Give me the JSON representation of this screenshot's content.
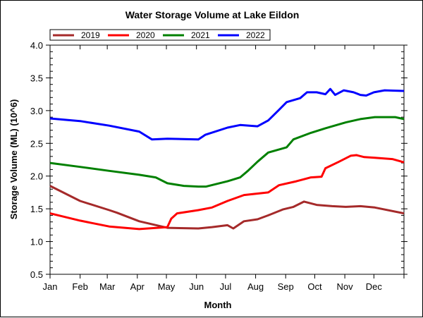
{
  "chart_data": {
    "type": "line",
    "title": "Water Storage Volume at Lake Eildon",
    "xlabel": "Month",
    "ylabel": "Storage Volume (ML) (10^6)",
    "x_unit": "day of year",
    "xlim": [
      0,
      365
    ],
    "ylim": [
      0.5,
      4.0
    ],
    "yticks": [
      "0.5",
      "1.0",
      "1.5",
      "2.0",
      "2.5",
      "3.0",
      "3.5",
      "4.0"
    ],
    "xticks": [
      {
        "day": 0,
        "label": "Jan"
      },
      {
        "day": 31,
        "label": "Feb"
      },
      {
        "day": 59,
        "label": "Mar"
      },
      {
        "day": 90,
        "label": "Apr"
      },
      {
        "day": 120,
        "label": "May"
      },
      {
        "day": 151,
        "label": "Jun"
      },
      {
        "day": 181,
        "label": "Jul"
      },
      {
        "day": 212,
        "label": "Aug"
      },
      {
        "day": 243,
        "label": "Sep"
      },
      {
        "day": 273,
        "label": "Oct"
      },
      {
        "day": 304,
        "label": "Nov"
      },
      {
        "day": 334,
        "label": "Dec"
      }
    ],
    "grid": false,
    "legend": "top-left",
    "series": [
      {
        "name": "2019",
        "color": "#a52a2a",
        "points": [
          [
            0,
            1.85
          ],
          [
            31,
            1.62
          ],
          [
            61,
            1.48
          ],
          [
            69,
            1.44
          ],
          [
            92,
            1.31
          ],
          [
            121,
            1.21
          ],
          [
            153,
            1.2
          ],
          [
            167,
            1.22
          ],
          [
            183,
            1.25
          ],
          [
            189,
            1.2
          ],
          [
            200,
            1.31
          ],
          [
            214,
            1.34
          ],
          [
            225,
            1.4
          ],
          [
            240,
            1.49
          ],
          [
            251,
            1.53
          ],
          [
            262,
            1.61
          ],
          [
            275,
            1.56
          ],
          [
            291,
            1.54
          ],
          [
            305,
            1.53
          ],
          [
            320,
            1.54
          ],
          [
            335,
            1.52
          ],
          [
            365,
            1.43
          ]
        ]
      },
      {
        "name": "2020",
        "color": "#ff0000",
        "points": [
          [
            0,
            1.43
          ],
          [
            31,
            1.32
          ],
          [
            61,
            1.23
          ],
          [
            92,
            1.19
          ],
          [
            121,
            1.22
          ],
          [
            125,
            1.35
          ],
          [
            131,
            1.43
          ],
          [
            153,
            1.48
          ],
          [
            167,
            1.52
          ],
          [
            183,
            1.62
          ],
          [
            200,
            1.71
          ],
          [
            225,
            1.75
          ],
          [
            236,
            1.86
          ],
          [
            254,
            1.92
          ],
          [
            269,
            1.98
          ],
          [
            280,
            1.99
          ],
          [
            284,
            2.12
          ],
          [
            298,
            2.22
          ],
          [
            310,
            2.31
          ],
          [
            316,
            2.32
          ],
          [
            324,
            2.29
          ],
          [
            335,
            2.28
          ],
          [
            353,
            2.26
          ],
          [
            365,
            2.21
          ]
        ]
      },
      {
        "name": "2021",
        "color": "#008000",
        "points": [
          [
            0,
            2.2
          ],
          [
            31,
            2.14
          ],
          [
            61,
            2.08
          ],
          [
            92,
            2.02
          ],
          [
            109,
            1.98
          ],
          [
            121,
            1.89
          ],
          [
            138,
            1.85
          ],
          [
            153,
            1.84
          ],
          [
            161,
            1.84
          ],
          [
            183,
            1.92
          ],
          [
            196,
            1.98
          ],
          [
            204,
            2.08
          ],
          [
            214,
            2.22
          ],
          [
            225,
            2.36
          ],
          [
            244,
            2.44
          ],
          [
            251,
            2.56
          ],
          [
            269,
            2.66
          ],
          [
            284,
            2.73
          ],
          [
            305,
            2.82
          ],
          [
            320,
            2.87
          ],
          [
            335,
            2.9
          ],
          [
            356,
            2.9
          ],
          [
            365,
            2.87
          ]
        ]
      },
      {
        "name": "2022",
        "color": "#0000ff",
        "points": [
          [
            0,
            2.88
          ],
          [
            31,
            2.84
          ],
          [
            61,
            2.77
          ],
          [
            92,
            2.68
          ],
          [
            105,
            2.56
          ],
          [
            121,
            2.57
          ],
          [
            153,
            2.56
          ],
          [
            160,
            2.63
          ],
          [
            183,
            2.74
          ],
          [
            196,
            2.78
          ],
          [
            214,
            2.76
          ],
          [
            225,
            2.85
          ],
          [
            236,
            3.01
          ],
          [
            244,
            3.13
          ],
          [
            258,
            3.19
          ],
          [
            265,
            3.28
          ],
          [
            275,
            3.28
          ],
          [
            284,
            3.25
          ],
          [
            289,
            3.33
          ],
          [
            294,
            3.24
          ],
          [
            303,
            3.31
          ],
          [
            313,
            3.28
          ],
          [
            320,
            3.24
          ],
          [
            326,
            3.23
          ],
          [
            334,
            3.28
          ],
          [
            345,
            3.31
          ],
          [
            365,
            3.3
          ]
        ]
      }
    ]
  }
}
